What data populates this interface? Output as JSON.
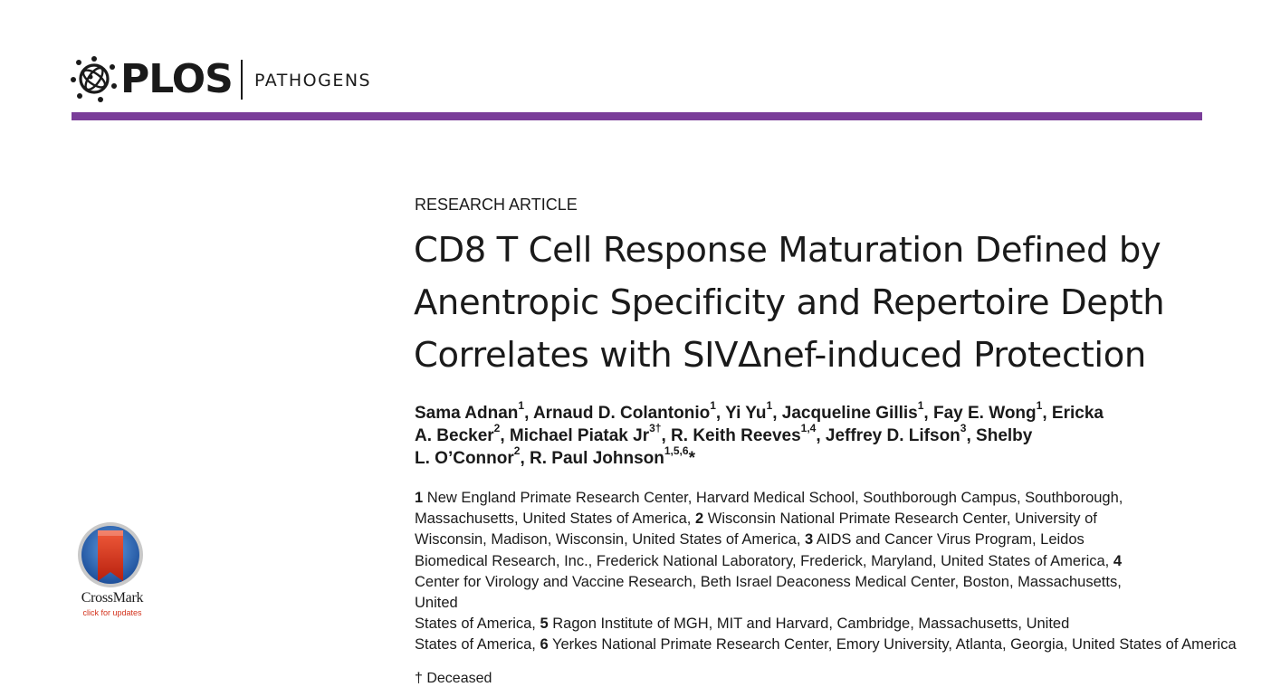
{
  "brand": {
    "logo_text": "PLOS",
    "journal": "PATHOGENS",
    "icon": "plos-atom-icon",
    "rule_color": "#7a3d99"
  },
  "article": {
    "type": "RESEARCH ARTICLE",
    "title_lines": [
      "CD8 T Cell Response Maturation Defined by",
      "Anentropic Specificity and Repertoire Depth",
      "Correlates with SIVΔnef-induced Protection"
    ]
  },
  "authors": [
    {
      "name": "Sama Adnan",
      "sup": "1"
    },
    {
      "name": "Arnaud D. Colantonio",
      "sup": "1"
    },
    {
      "name": "Yi Yu",
      "sup": "1"
    },
    {
      "name": "Jacqueline Gillis",
      "sup": "1"
    },
    {
      "name": "Fay E. Wong",
      "sup": "1"
    },
    {
      "name": "Ericka A. Becker",
      "sup": "2"
    },
    {
      "name": "Michael Piatak Jr",
      "sup": "3†"
    },
    {
      "name": "R. Keith Reeves",
      "sup": "1,4"
    },
    {
      "name": "Jeffrey D. Lifson",
      "sup": "3"
    },
    {
      "name": "Shelby L. O’Connor",
      "sup": "2"
    },
    {
      "name": "R. Paul Johnson",
      "sup": "1,5,6",
      "mark": "*"
    }
  ],
  "affiliations": [
    {
      "num": "1",
      "text": "New England Primate Research Center, Harvard Medical School, Southborough Campus, Southborough, Massachusetts, United States of America"
    },
    {
      "num": "2",
      "text": "Wisconsin National Primate Research Center, University of Wisconsin, Madison, Wisconsin, United States of America"
    },
    {
      "num": "3",
      "text": "AIDS and Cancer Virus Program, Leidos Biomedical Research, Inc., Frederick National Laboratory, Frederick, Maryland, United States of America"
    },
    {
      "num": "4",
      "text": "Center for Virology and Vaccine Research, Beth Israel Deaconess Medical Center, Boston, Massachusetts, United States of America"
    },
    {
      "num": "5",
      "text": "Ragon Institute of MGH, MIT and Harvard, Cambridge, Massachusetts, United States of America"
    },
    {
      "num": "6",
      "text": "Yerkes National Primate Research Center, Emory University, Atlanta, Georgia, United States of America"
    }
  ],
  "crossmark": {
    "label": "CrossMark",
    "sublabel": "click for updates",
    "icon": "crossmark-icon"
  },
  "cutoff_text": "† Deceased"
}
